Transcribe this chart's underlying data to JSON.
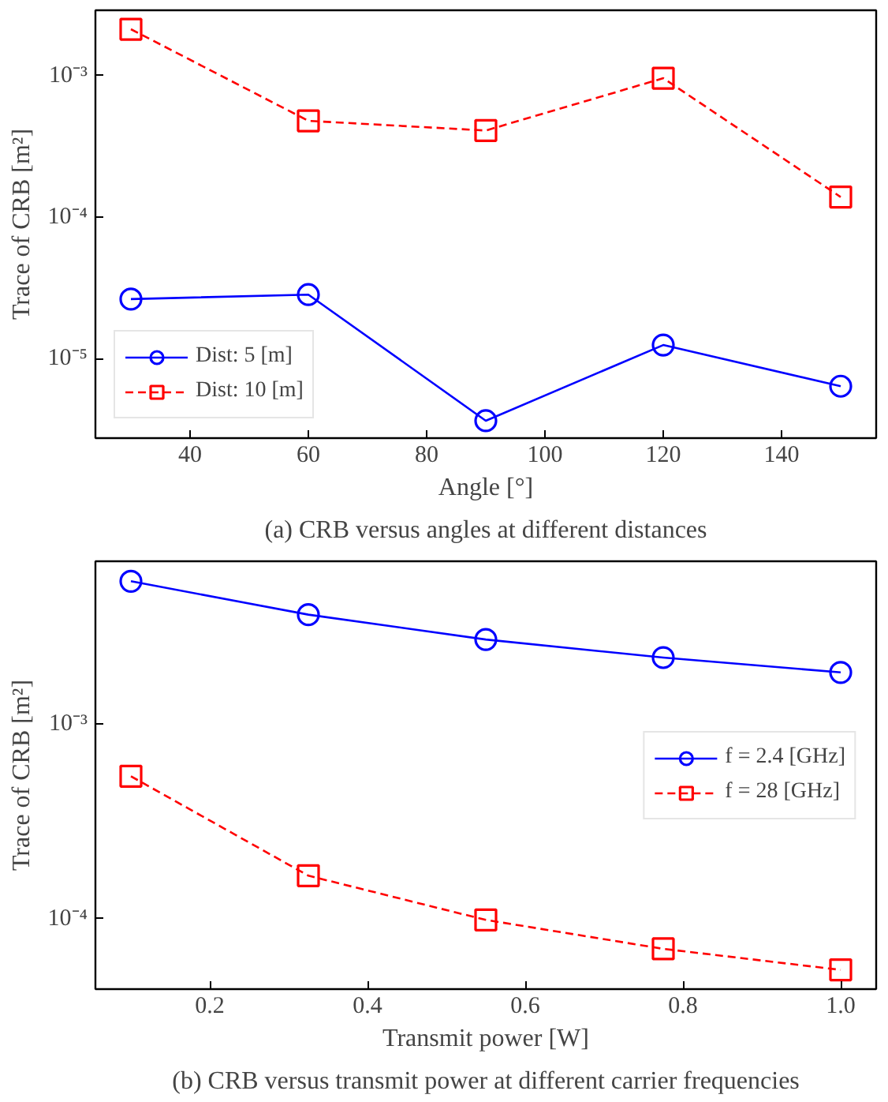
{
  "chart_data": [
    {
      "type": "line",
      "title": "(a) CRB versus angles at different distances",
      "xlabel": "Angle [°]",
      "ylabel": "Trace of CRB [m²]",
      "x": [
        30,
        60,
        90,
        120,
        150
      ],
      "log": "y",
      "grid": false,
      "legend": "bottom left",
      "xlim": [
        24,
        156
      ],
      "ylim": [
        2.75e-06,
        0.0029
      ],
      "xticks": [
        40,
        60,
        80,
        100,
        120,
        140
      ],
      "yticks": [
        {
          "value": 1e-05,
          "label": "10⁻⁵"
        },
        {
          "value": 0.0001,
          "label": "10⁻⁴"
        },
        {
          "value": 0.001,
          "label": "10⁻³"
        }
      ],
      "series": [
        {
          "name": "Dist: 5 [m]",
          "color": "#0000ff",
          "marker": "circle",
          "line_style": "solid",
          "values": [
            2.64e-05,
            2.84e-05,
            3.65e-06,
            1.25e-05,
            6.4e-06
          ]
        },
        {
          "name": "Dist: 10 [m]",
          "color": "#ff0000",
          "marker": "square",
          "line_style": "dashed",
          "values": [
            0.00213,
            0.00048,
            0.00041,
            0.00096,
            0.000139
          ]
        }
      ]
    },
    {
      "type": "line",
      "title": "(b) CRB versus transmit power at different carrier frequencies",
      "xlabel": "Transmit power [W]",
      "ylabel": "Trace of CRB [m²]",
      "x": [
        0.1,
        0.325,
        0.55,
        0.775,
        1.0
      ],
      "log": "y",
      "grid": false,
      "legend": "right",
      "xlim": [
        0.055,
        1.045
      ],
      "ylim": [
        4.35e-05,
        0.0068
      ],
      "xticks": [
        0.2,
        0.4,
        0.6,
        0.8,
        {
          "value": 1.0,
          "label": "1.0"
        }
      ],
      "yticks": [
        {
          "value": 0.0001,
          "label": "10⁻⁴"
        },
        {
          "value": 0.001,
          "label": "10⁻³"
        }
      ],
      "series": [
        {
          "name": "f = 2.4 [GHz]",
          "color": "#0000ff",
          "marker": "circle",
          "line_style": "solid",
          "values": [
            0.00537,
            0.00362,
            0.0027,
            0.00218,
            0.00183
          ]
        },
        {
          "name": "f = 28 [GHz]",
          "color": "#ff0000",
          "marker": "square",
          "line_style": "dashed",
          "values": [
            0.000537,
            0.000166,
            9.85e-05,
            7e-05,
            5.46e-05
          ]
        }
      ]
    }
  ]
}
